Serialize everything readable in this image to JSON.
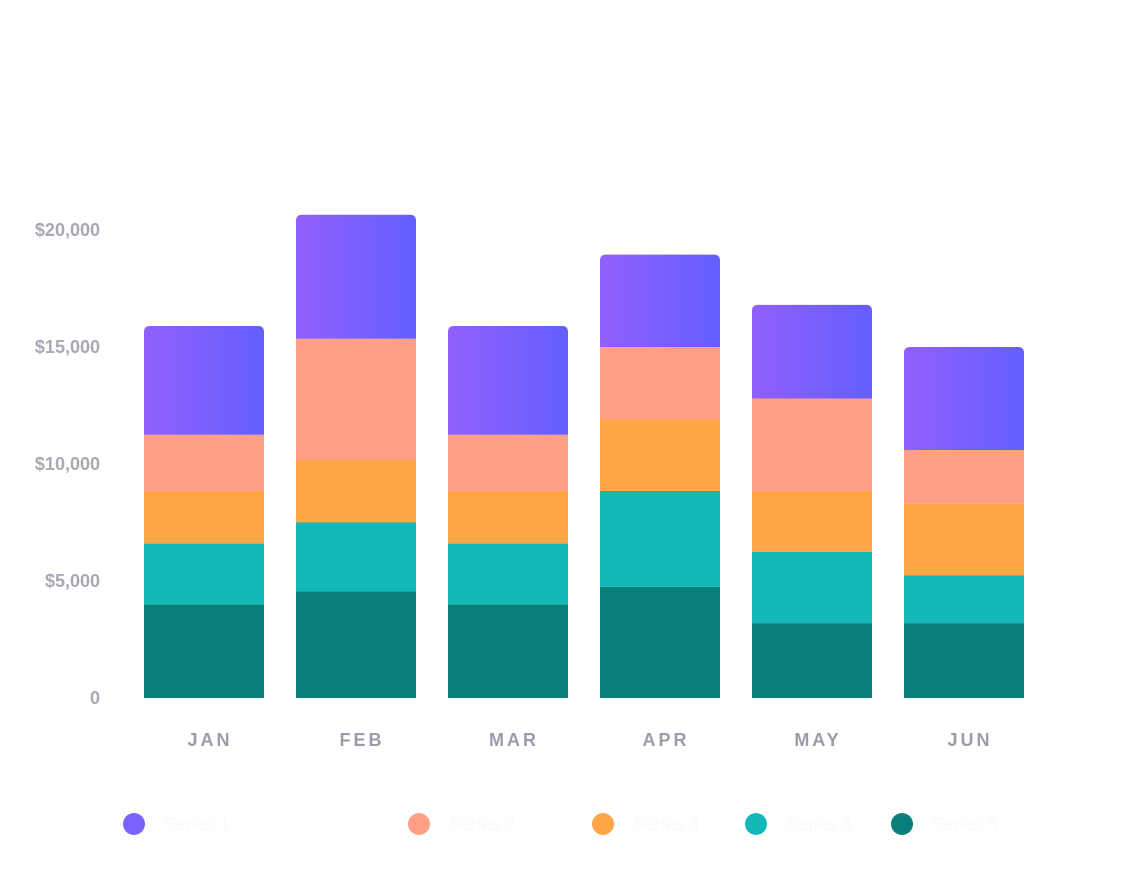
{
  "chart_data": {
    "type": "bar",
    "stacked": true,
    "title": "",
    "xlabel": "",
    "ylabel": "",
    "categories": [
      "JAN",
      "FEB",
      "MAR",
      "APR",
      "MAY",
      "JUN"
    ],
    "y_tick_labels": [
      "0",
      "$5,000",
      "$10,000",
      "$15,000",
      "$20,000"
    ],
    "y_tick_values": [
      0,
      5000,
      10000,
      15000,
      20000
    ],
    "ylim": [
      0,
      20000
    ],
    "series": [
      {
        "name": "Series 5",
        "color": "#087f7b",
        "values": [
          4000,
          4550,
          4000,
          4750,
          3200,
          3200
        ]
      },
      {
        "name": "Series 4",
        "color": "#14b8b8",
        "values": [
          2600,
          2950,
          2600,
          4100,
          3050,
          2050
        ]
      },
      {
        "name": "Series 3",
        "color": "#ffa647",
        "values": [
          2250,
          2650,
          2250,
          3050,
          2600,
          3050
        ]
      },
      {
        "name": "Series 2",
        "color": "#ffa086",
        "values": [
          2400,
          5200,
          2400,
          3100,
          3950,
          2300
        ]
      },
      {
        "name": "Series 1",
        "color": "#7a62ff",
        "gradient": [
          "#915ffb",
          "#635ffe"
        ],
        "values": [
          4650,
          5300,
          4650,
          3950,
          4000,
          4400
        ]
      }
    ],
    "legend": {
      "placement": "bottom",
      "items": [
        {
          "label": "Series 1",
          "color": "#7a62ff"
        },
        {
          "label": "Series 2",
          "color": "#ffa086"
        },
        {
          "label": "Series 3",
          "color": "#ffa647"
        },
        {
          "label": "Series 4",
          "color": "#14b8b8"
        },
        {
          "label": "Series 5",
          "color": "#087f7b"
        }
      ]
    }
  }
}
